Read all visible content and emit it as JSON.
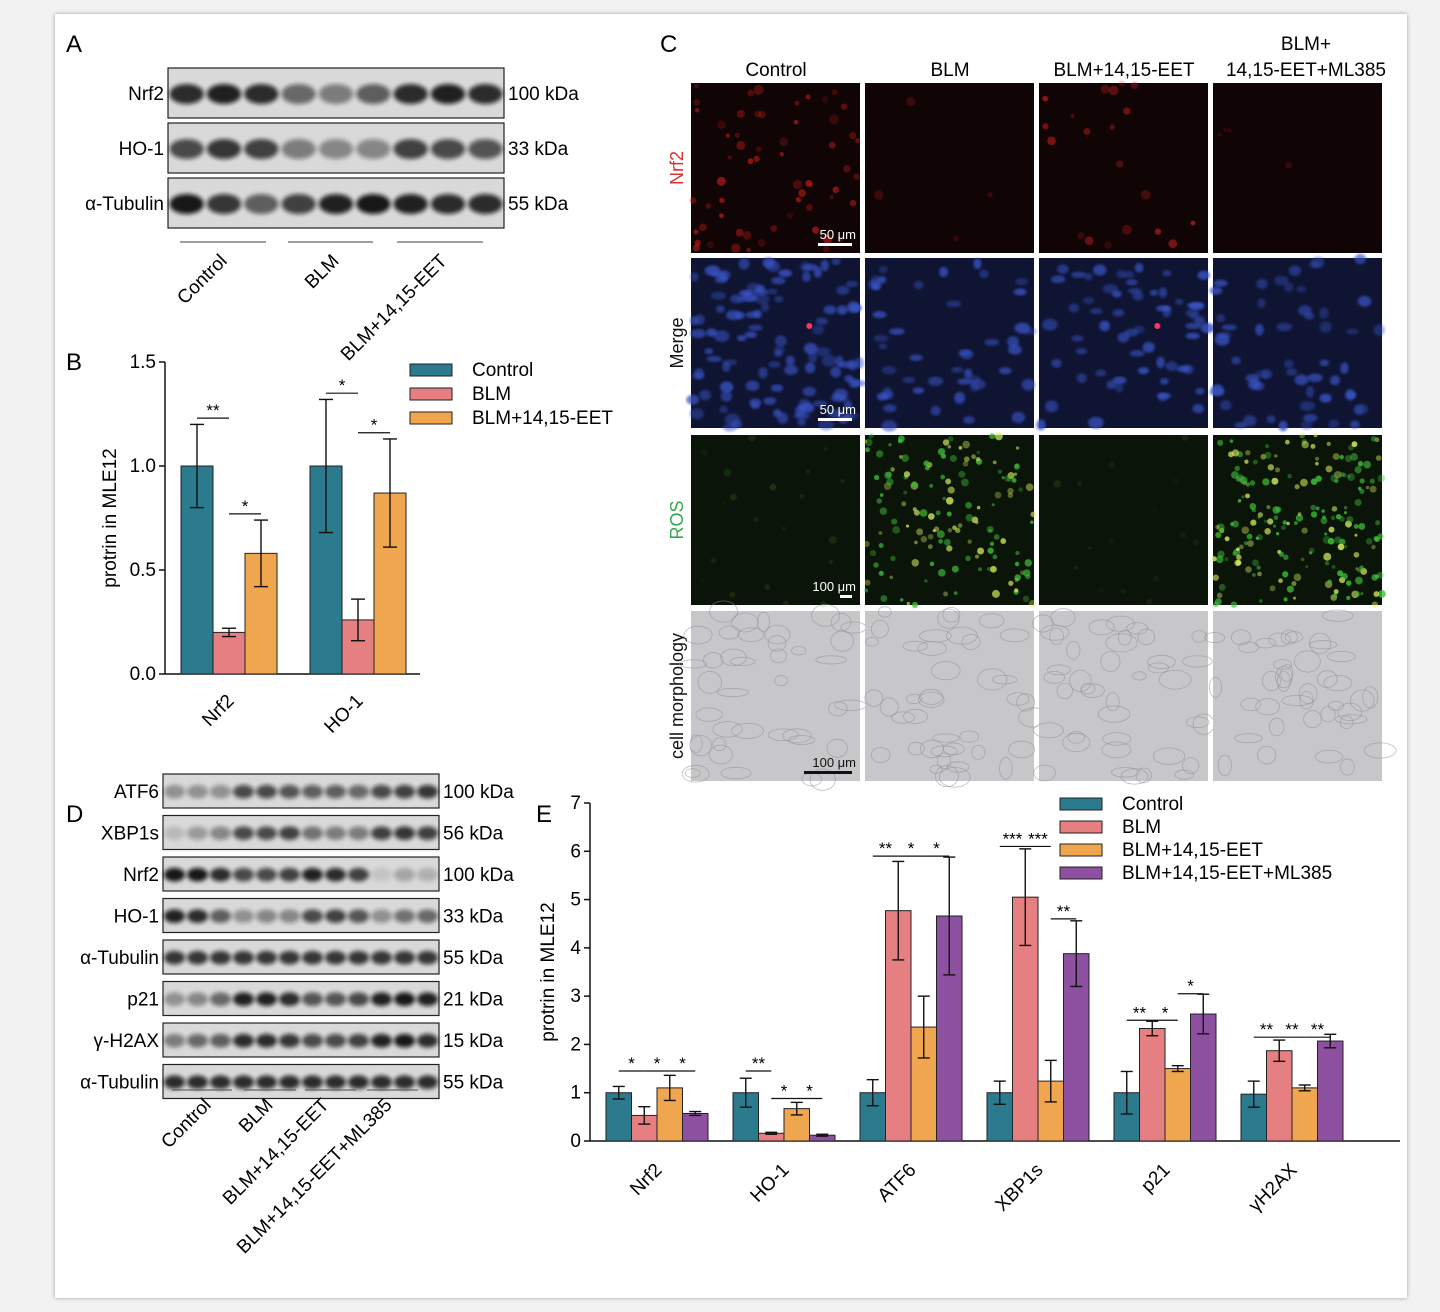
{
  "panel_letters": [
    "A",
    "B",
    "C",
    "D",
    "E"
  ],
  "colors": {
    "control": "#2b7a8e",
    "blm": "#e57f82",
    "eet": "#f0a64e",
    "ml385": "#8e50a0",
    "nrf2_red": "#d83131",
    "ros_green": "#32a852"
  },
  "panelA": {
    "rows": [
      {
        "label": "Nrf2",
        "kda": "100 kDa"
      },
      {
        "label": "HO-1",
        "kda": "33 kDa"
      },
      {
        "label": "α-Tubulin",
        "kda": "55 kDa"
      }
    ],
    "groups": [
      "Control",
      "BLM",
      "BLM+14,15-EET"
    ]
  },
  "panelC": {
    "columns": [
      "Control",
      "BLM",
      "BLM+14,15-EET",
      "BLM+",
      "14,15-EET+ML385"
    ],
    "rows": [
      "Nrf2",
      "Merge",
      "ROS",
      "cell morphology"
    ],
    "scalebars": [
      "50 μm",
      "50 μm",
      "100 μm",
      "100 μm"
    ]
  },
  "panelD": {
    "rows": [
      {
        "label": "ATF6",
        "kda": "100 kDa"
      },
      {
        "label": "XBP1s",
        "kda": "56 kDa"
      },
      {
        "label": "Nrf2",
        "kda": "100 kDa"
      },
      {
        "label": "HO-1",
        "kda": "33 kDa"
      },
      {
        "label": "α-Tubulin",
        "kda": "55 kDa"
      },
      {
        "label": "p21",
        "kda": "21 kDa"
      },
      {
        "label": "γ-H2AX",
        "kda": "15 kDa"
      },
      {
        "label": "α-Tubulin",
        "kda": "55 kDa"
      }
    ],
    "groups": [
      "Control",
      "BLM",
      "BLM+14,15-EET",
      "BLM+14,15-EET+ML385"
    ]
  },
  "chart_data": [
    {
      "panel": "B",
      "type": "bar",
      "ylabel": "protrin in MLE12",
      "ylim": [
        0,
        1.5
      ],
      "yticks": [
        "0.0",
        "0.5",
        "1.0",
        "1.5"
      ],
      "categories": [
        "Nrf2",
        "HO-1"
      ],
      "legend_placement": "top-right",
      "series": [
        {
          "name": "Control",
          "values": [
            1.0,
            1.0
          ],
          "errors": [
            0.2,
            0.32
          ]
        },
        {
          "name": "BLM",
          "values": [
            0.2,
            0.26
          ],
          "errors": [
            0.02,
            0.1
          ]
        },
        {
          "name": "BLM+14,15-EET",
          "values": [
            0.58,
            0.87
          ],
          "errors": [
            0.16,
            0.26
          ]
        }
      ],
      "significance": [
        {
          "category": "Nrf2",
          "from": 0,
          "to": 1,
          "label": "**",
          "y": 1.23
        },
        {
          "category": "Nrf2",
          "from": 1,
          "to": 2,
          "label": "*",
          "y": 0.77
        },
        {
          "category": "HO-1",
          "from": 0,
          "to": 1,
          "label": "*",
          "y": 1.35
        },
        {
          "category": "HO-1",
          "from": 1,
          "to": 2,
          "label": "*",
          "y": 1.16
        }
      ]
    },
    {
      "panel": "E",
      "type": "bar",
      "ylabel": "protrin in MLE12",
      "ylim": [
        0,
        7
      ],
      "yticks": [
        "0",
        "1",
        "2",
        "3",
        "4",
        "5",
        "6",
        "7"
      ],
      "categories": [
        "Nrf2",
        "HO-1",
        "ATF6",
        "XBP1s",
        "p21",
        "γH2AX"
      ],
      "legend_placement": "top-right",
      "series": [
        {
          "name": "Control",
          "values": [
            1.0,
            1.0,
            1.0,
            1.0,
            1.0,
            0.97
          ],
          "errors": [
            0.13,
            0.3,
            0.27,
            0.24,
            0.44,
            0.27
          ]
        },
        {
          "name": "BLM",
          "values": [
            0.53,
            0.16,
            4.77,
            5.05,
            2.33,
            1.87
          ],
          "errors": [
            0.18,
            0.02,
            1.02,
            1.0,
            0.15,
            0.22
          ]
        },
        {
          "name": "BLM+14,15-EET",
          "values": [
            1.1,
            0.67,
            2.36,
            1.24,
            1.5,
            1.1
          ],
          "errors": [
            0.26,
            0.13,
            0.64,
            0.43,
            0.06,
            0.06
          ]
        },
        {
          "name": "BLM+14,15-EET+ML385",
          "values": [
            0.57,
            0.12,
            4.66,
            3.88,
            2.63,
            2.07
          ],
          "errors": [
            0.04,
            0.02,
            1.22,
            0.68,
            0.41,
            0.14
          ]
        }
      ],
      "significance": [
        {
          "category": "Nrf2",
          "from": 0,
          "to": 1,
          "label": "*",
          "y": 1.45
        },
        {
          "category": "Nrf2",
          "from": 1,
          "to": 2,
          "label": "*",
          "y": 1.45
        },
        {
          "category": "Nrf2",
          "from": 2,
          "to": 3,
          "label": "*",
          "y": 1.45
        },
        {
          "category": "HO-1",
          "from": 0,
          "to": 1,
          "label": "**",
          "y": 1.45
        },
        {
          "category": "HO-1",
          "from": 1,
          "to": 2,
          "label": "*",
          "y": 0.88
        },
        {
          "category": "HO-1",
          "from": 2,
          "to": 3,
          "label": "*",
          "y": 0.88
        },
        {
          "category": "ATF6",
          "from": 0,
          "to": 1,
          "label": "**",
          "y": 5.9
        },
        {
          "category": "ATF6",
          "from": 1,
          "to": 2,
          "label": "*",
          "y": 5.9
        },
        {
          "category": "ATF6",
          "from": 2,
          "to": 3,
          "label": "*",
          "y": 5.9
        },
        {
          "category": "XBP1s",
          "from": 0,
          "to": 1,
          "label": "***",
          "y": 6.1
        },
        {
          "category": "XBP1s",
          "from": 1,
          "to": 2,
          "label": "***",
          "y": 6.1
        },
        {
          "category": "XBP1s",
          "from": 2,
          "to": 3,
          "label": "**",
          "y": 4.6
        },
        {
          "category": "p21",
          "from": 0,
          "to": 1,
          "label": "**",
          "y": 2.5
        },
        {
          "category": "p21",
          "from": 1,
          "to": 2,
          "label": "*",
          "y": 2.5
        },
        {
          "category": "p21",
          "from": 2,
          "to": 3,
          "label": "*",
          "y": 3.05
        },
        {
          "category": "γH2AX",
          "from": 0,
          "to": 1,
          "label": "**",
          "y": 2.15
        },
        {
          "category": "γH2AX",
          "from": 1,
          "to": 2,
          "label": "**",
          "y": 2.15
        },
        {
          "category": "γH2AX",
          "from": 2,
          "to": 3,
          "label": "**",
          "y": 2.15
        }
      ]
    }
  ]
}
